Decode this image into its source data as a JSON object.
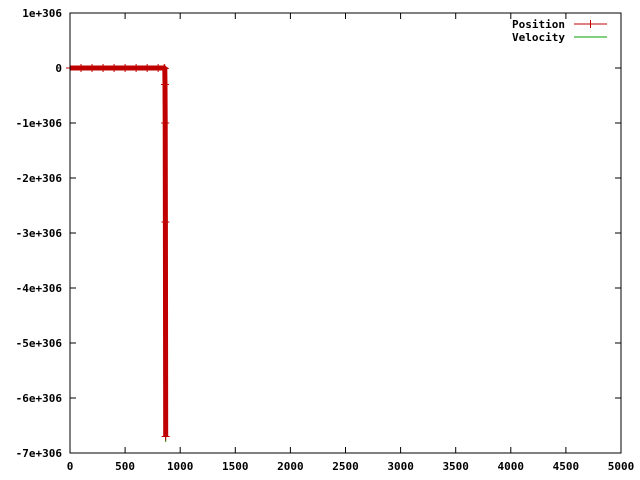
{
  "chart_data": {
    "type": "line",
    "title": "",
    "xlabel": "",
    "ylabel": "",
    "xlim": [
      0,
      5000
    ],
    "ylim": [
      -7e+306,
      1e+306
    ],
    "grid": false,
    "legend_position": "top-right",
    "x_ticks": [
      0,
      500,
      1000,
      1500,
      2000,
      2500,
      3000,
      3500,
      4000,
      4500,
      5000
    ],
    "x_tick_labels": [
      "0",
      "500",
      "1000",
      "1500",
      "2000",
      "2500",
      "3000",
      "3500",
      "4000",
      "4500",
      "5000"
    ],
    "y_ticks": [
      1e+306,
      0,
      -1e+306,
      -2e+306,
      -3e+306,
      -4e+306,
      -5e+306,
      -6e+306,
      -7e+306
    ],
    "y_tick_labels": [
      "1e+306",
      "0",
      "-1e+306",
      "-2e+306",
      "-3e+306",
      "-4e+306",
      "-5e+306",
      "-6e+306",
      "-7e+306"
    ],
    "series": [
      {
        "name": "Position",
        "color": "#c00000",
        "marker": "plus",
        "x": [
          0,
          100,
          200,
          300,
          400,
          500,
          600,
          700,
          800,
          855,
          860,
          862,
          864,
          866,
          868
        ],
        "y": [
          0,
          0,
          0,
          0,
          0,
          0,
          0,
          0,
          0,
          0,
          -1e+304,
          -3e+305,
          -1e+306,
          -2.8e+306,
          -6.7e+306
        ]
      },
      {
        "name": "Velocity",
        "color": "#00a000",
        "marker": "none",
        "x": [
          0,
          100,
          200,
          300,
          400,
          500,
          600,
          700,
          800,
          855,
          860,
          862,
          864,
          866,
          868
        ],
        "y": [
          0,
          0,
          0,
          0,
          0,
          0,
          0,
          0,
          0,
          0,
          -3e+305,
          -1e+306,
          -2.8e+306,
          -5.7e+306,
          -6.8e+306
        ]
      }
    ]
  }
}
